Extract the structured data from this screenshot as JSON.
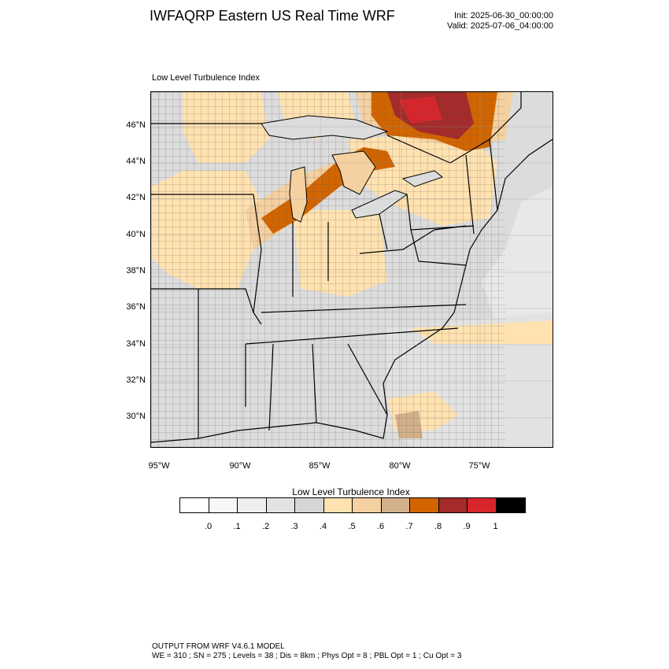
{
  "header": {
    "title": "IWFAQRP Eastern US Real Time WRF",
    "init": "Init: 2025-06-30_00:00:00",
    "valid": "Valid: 2025-07-06_04:00:00"
  },
  "panel": {
    "title": "Low Level Turbulence Index"
  },
  "axes": {
    "lat_labels": [
      "46°N",
      "44°N",
      "42°N",
      "40°N",
      "38°N",
      "36°N",
      "34°N",
      "32°N",
      "30°N"
    ],
    "lon_labels": [
      "95°W",
      "90°W",
      "85°W",
      "80°W",
      "75°W"
    ]
  },
  "colorbar": {
    "title": "Low Level Turbulence Index",
    "labels": [
      ".0",
      ".1",
      ".2",
      ".3",
      ".4",
      ".5",
      ".6",
      ".7",
      ".8",
      ".9",
      "1"
    ],
    "colors": [
      "#ffffff",
      "#f7f7f7",
      "#eeeeee",
      "#e2e2e2",
      "#d6d6d6",
      "#ffe2b0",
      "#f5d0a0",
      "#d2b08a",
      "#d26500",
      "#a52a2a",
      "#d7262b",
      "#000000"
    ]
  },
  "footer": {
    "line1": "OUTPUT FROM WRF V4.6.1 MODEL",
    "line2": "WE = 310 ; SN = 275 ; Levels = 38 ; Dis = 8km ; Phys Opt = 8 ; PBL Opt = 1 ; Cu Opt = 3"
  }
}
